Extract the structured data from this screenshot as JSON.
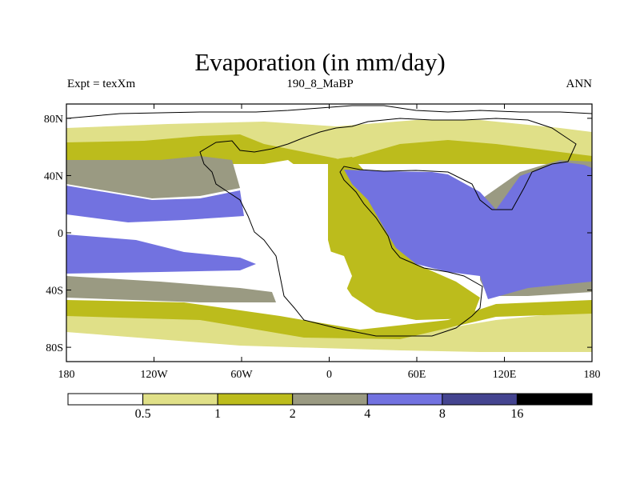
{
  "title": "Evaporation (in mm/day)",
  "left_label": "Expt = texXm",
  "center_label": "190_8_MaBP",
  "right_label": "ANN",
  "lon_ticks": [
    {
      "lon": -180,
      "label": "180"
    },
    {
      "lon": -120,
      "label": "120W"
    },
    {
      "lon": -60,
      "label": "60W"
    },
    {
      "lon": 0,
      "label": "0"
    },
    {
      "lon": 60,
      "label": "60E"
    },
    {
      "lon": 120,
      "label": "120E"
    },
    {
      "lon": 180,
      "label": "180"
    }
  ],
  "lat_ticks": [
    {
      "lat": 80,
      "label": "80N"
    },
    {
      "lat": 40,
      "label": "40N"
    },
    {
      "lat": 0,
      "label": "0"
    },
    {
      "lat": -40,
      "label": "40S"
    },
    {
      "lat": -80,
      "label": "80S"
    }
  ],
  "colorbar": {
    "colors": [
      "#ffffff",
      "#e0e088",
      "#bcbc1c",
      "#9a9a82",
      "#7272e0",
      "#444490",
      "#000000"
    ],
    "levels": [
      "0.5",
      "1",
      "2",
      "4",
      "8",
      "16"
    ]
  }
}
